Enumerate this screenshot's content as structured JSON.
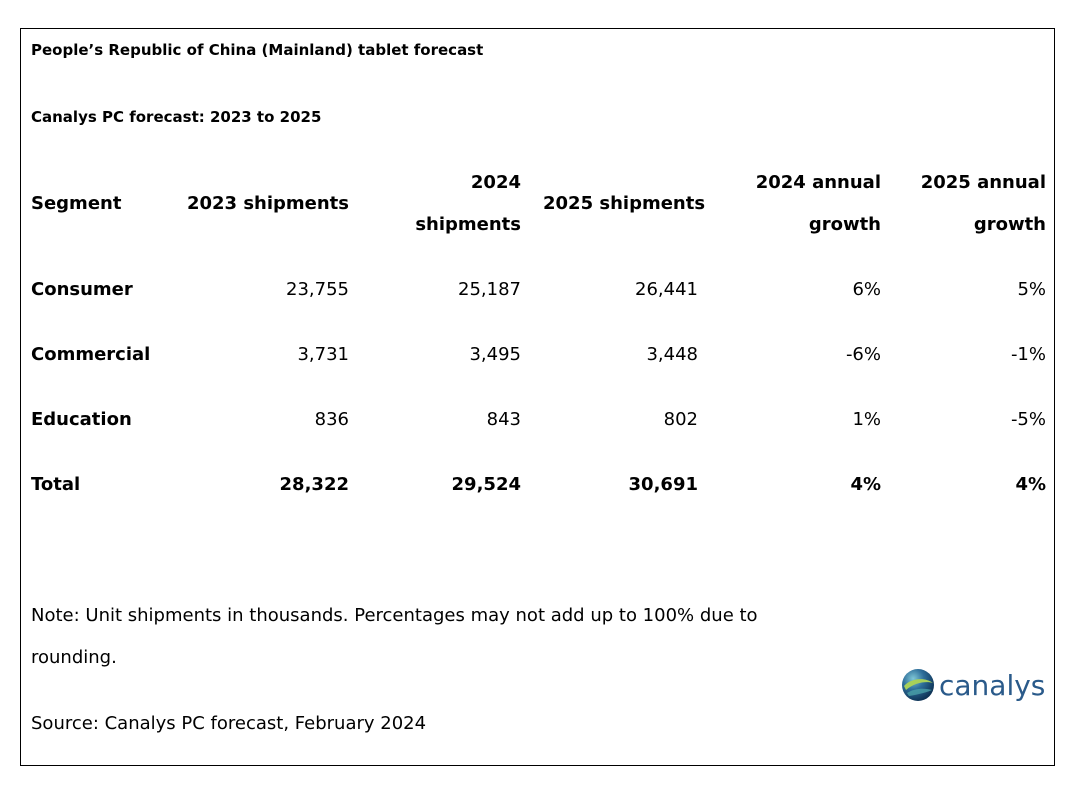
{
  "title": "People’s Republic of China (Mainland) tablet forecast",
  "subtitle": "Canalys PC forecast: 2023 to 2025",
  "chart_data": {
    "type": "table",
    "columns": [
      "Segment",
      "2023 shipments",
      "2024 shipments",
      "2025 shipments",
      "2024 annual growth",
      "2025 annual growth"
    ],
    "rows": [
      [
        "Consumer",
        "23,755",
        "25,187",
        "26,441",
        "6%",
        "5%"
      ],
      [
        "Commercial",
        "3,731",
        "3,495",
        "3,448",
        "-6%",
        "-1%"
      ],
      [
        "Education",
        "836",
        "843",
        "802",
        "1%",
        "-5%"
      ],
      [
        "Total",
        "28,322",
        "29,524",
        "30,691",
        "4%",
        "4%"
      ]
    ],
    "title": "People’s Republic of China (Mainland) tablet forecast",
    "subtitle": "Canalys PC forecast: 2023 to 2025"
  },
  "header": {
    "segment": "Segment",
    "c2023": "2023 shipments",
    "c2024_l1": "2024",
    "c2024_l2": "shipments",
    "c2025": "2025 shipments",
    "g2024_l1": "2024 annual",
    "g2024_l2": "growth",
    "g2025_l1": "2025 annual",
    "g2025_l2": "growth"
  },
  "note": "Note: Unit shipments in thousands. Percentages may not add up to 100% due to rounding.",
  "source": "Source: Canalys PC forecast, February 2024",
  "logo": {
    "text": "canalys",
    "icon": "globe-icon",
    "text_color": "#2a5a8a",
    "globe_colors": [
      "#0b3a63",
      "#2e8a8a",
      "#a8d05a"
    ]
  }
}
